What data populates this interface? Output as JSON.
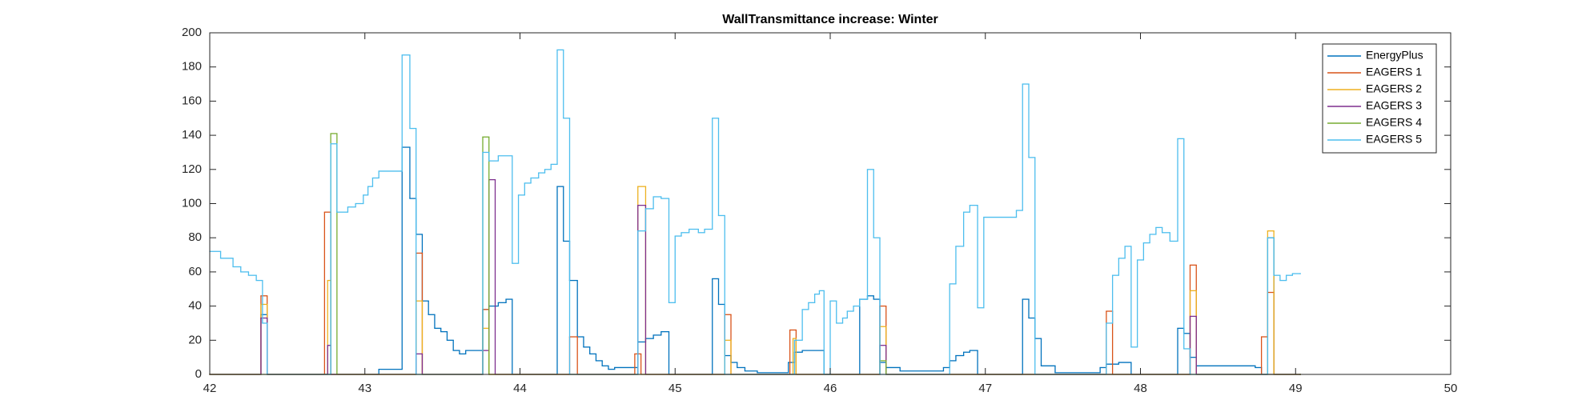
{
  "chart_data": {
    "type": "step-line",
    "title": "WallTransmittance increase: Winter",
    "xlim": [
      42,
      50
    ],
    "xticks": [
      42,
      43,
      44,
      45,
      46,
      47,
      48,
      49,
      50
    ],
    "ylim": [
      0,
      200
    ],
    "yticks": [
      0,
      20,
      40,
      60,
      80,
      100,
      120,
      140,
      160,
      180,
      200
    ],
    "grid": false,
    "legend": "top-right",
    "series": [
      {
        "name": "EnergyPlus",
        "color": "#0072bd",
        "x": [
          42,
          42.33,
          42.37,
          43.09,
          43.24,
          43.29,
          43.33,
          43.37,
          43.41,
          43.45,
          43.49,
          43.53,
          43.57,
          43.61,
          43.65,
          43.76,
          43.8,
          43.86,
          43.91,
          43.95,
          44.24,
          44.28,
          44.32,
          44.37,
          44.41,
          44.45,
          44.49,
          44.53,
          44.57,
          44.61,
          44.76,
          44.81,
          44.86,
          44.91,
          44.96,
          45.24,
          45.28,
          45.32,
          45.36,
          45.4,
          45.45,
          45.53,
          45.73,
          45.77,
          45.82,
          45.96,
          46.19,
          46.24,
          46.28,
          46.32,
          46.36,
          46.45,
          46.73,
          46.77,
          46.81,
          46.86,
          46.9,
          46.95,
          47.24,
          47.28,
          47.32,
          47.36,
          47.45,
          47.74,
          47.78,
          47.86,
          47.94,
          48.24,
          48.28,
          48.32,
          48.36,
          48.74,
          48.78,
          48.82,
          48.86,
          49.03
        ],
        "values": [
          0,
          35,
          0,
          3,
          133,
          103,
          82,
          43,
          35,
          27,
          25,
          20,
          14,
          12,
          14,
          38,
          40,
          42,
          44,
          0,
          110,
          78,
          55,
          22,
          16,
          12,
          8,
          5,
          3,
          4,
          19,
          21,
          23,
          25,
          0,
          56,
          41,
          11,
          7,
          4,
          2,
          1,
          7,
          13,
          14,
          0,
          44,
          46,
          44,
          7,
          4,
          2,
          4,
          8,
          11,
          13,
          14,
          0,
          44,
          33,
          21,
          5,
          1,
          4,
          6,
          7,
          0,
          27,
          24,
          10,
          5,
          4,
          0,
          80,
          0,
          0
        ]
      },
      {
        "name": "EAGERS 1",
        "color": "#d95319",
        "x": [
          42,
          42.33,
          42.37,
          42.74,
          42.78,
          43.33,
          43.37,
          43.76,
          43.8,
          44.32,
          44.37,
          44.74,
          44.78,
          45.32,
          45.36,
          45.74,
          45.78,
          46.32,
          46.36,
          47.78,
          47.82,
          48.32,
          48.36,
          48.78,
          48.82,
          48.86,
          49.03
        ],
        "values": [
          0,
          46,
          0,
          95,
          0,
          71,
          0,
          38,
          0,
          22,
          0,
          12,
          0,
          35,
          0,
          26,
          0,
          40,
          0,
          37,
          0,
          64,
          0,
          22,
          48,
          0,
          0
        ]
      },
      {
        "name": "EAGERS 2",
        "color": "#edb120",
        "x": [
          42,
          42.33,
          42.37,
          42.76,
          42.78,
          43.33,
          43.37,
          43.76,
          43.8,
          44.76,
          44.81,
          45.32,
          45.36,
          45.76,
          45.78,
          46.32,
          46.36,
          48.32,
          48.36,
          48.82,
          48.86,
          49.03
        ],
        "values": [
          0,
          41,
          0,
          55,
          0,
          43,
          0,
          27,
          0,
          110,
          0,
          20,
          0,
          21,
          0,
          28,
          0,
          49,
          0,
          84,
          0,
          0
        ]
      },
      {
        "name": "EAGERS 3",
        "color": "#7e2f8e",
        "x": [
          42,
          42.33,
          42.37,
          42.76,
          42.78,
          43.33,
          43.37,
          43.76,
          43.8,
          43.84,
          44.76,
          44.81,
          46.32,
          46.36,
          48.32,
          48.36,
          49.03
        ],
        "values": [
          0,
          33,
          0,
          17,
          0,
          12,
          0,
          14,
          114,
          0,
          99,
          0,
          17,
          0,
          34,
          0,
          0
        ]
      },
      {
        "name": "EAGERS 4",
        "color": "#77ac30",
        "x": [
          42,
          42.78,
          42.82,
          43.76,
          43.8,
          46.32,
          46.36,
          49.03
        ],
        "values": [
          0,
          141,
          0,
          139,
          0,
          8,
          0,
          0
        ]
      },
      {
        "name": "EAGERS 5",
        "color": "#4dbeee",
        "x": [
          42,
          42.07,
          42.15,
          42.2,
          42.25,
          42.3,
          42.34,
          42.37,
          42.78,
          42.82,
          42.89,
          42.94,
          42.99,
          43.02,
          43.05,
          43.09,
          43.24,
          43.29,
          43.33,
          43.76,
          43.8,
          43.86,
          43.95,
          43.99,
          44.03,
          44.07,
          44.12,
          44.16,
          44.2,
          44.24,
          44.28,
          44.32,
          44.76,
          44.81,
          44.86,
          44.91,
          44.96,
          45,
          45.04,
          45.09,
          45.15,
          45.19,
          45.24,
          45.28,
          45.32,
          45.77,
          45.82,
          45.86,
          45.9,
          45.93,
          45.96,
          46,
          46.04,
          46.08,
          46.11,
          46.15,
          46.19,
          46.24,
          46.28,
          46.32,
          46.77,
          46.81,
          46.86,
          46.9,
          46.95,
          46.99,
          47.2,
          47.24,
          47.28,
          47.32,
          47.78,
          47.82,
          47.86,
          47.9,
          47.94,
          47.98,
          48.02,
          48.06,
          48.1,
          48.14,
          48.19,
          48.24,
          48.28,
          48.32,
          48.82,
          48.86,
          48.9,
          48.94,
          48.98,
          49.03
        ],
        "values": [
          72,
          68,
          63,
          60,
          58,
          55,
          30,
          0,
          135,
          95,
          98,
          100,
          105,
          110,
          115,
          119,
          187,
          144,
          0,
          130,
          125,
          128,
          65,
          105,
          112,
          115,
          118,
          120,
          123,
          190,
          150,
          0,
          84,
          97,
          104,
          103,
          42,
          81,
          83,
          85,
          83,
          85,
          150,
          93,
          0,
          20,
          38,
          42,
          47,
          49,
          0,
          43,
          30,
          33,
          37,
          40,
          44,
          120,
          80,
          0,
          53,
          75,
          95,
          99,
          39,
          92,
          96,
          170,
          127,
          0,
          30,
          58,
          68,
          75,
          16,
          67,
          77,
          82,
          86,
          83,
          78,
          138,
          15,
          0,
          80,
          58,
          55,
          58,
          59,
          59
        ]
      }
    ]
  }
}
